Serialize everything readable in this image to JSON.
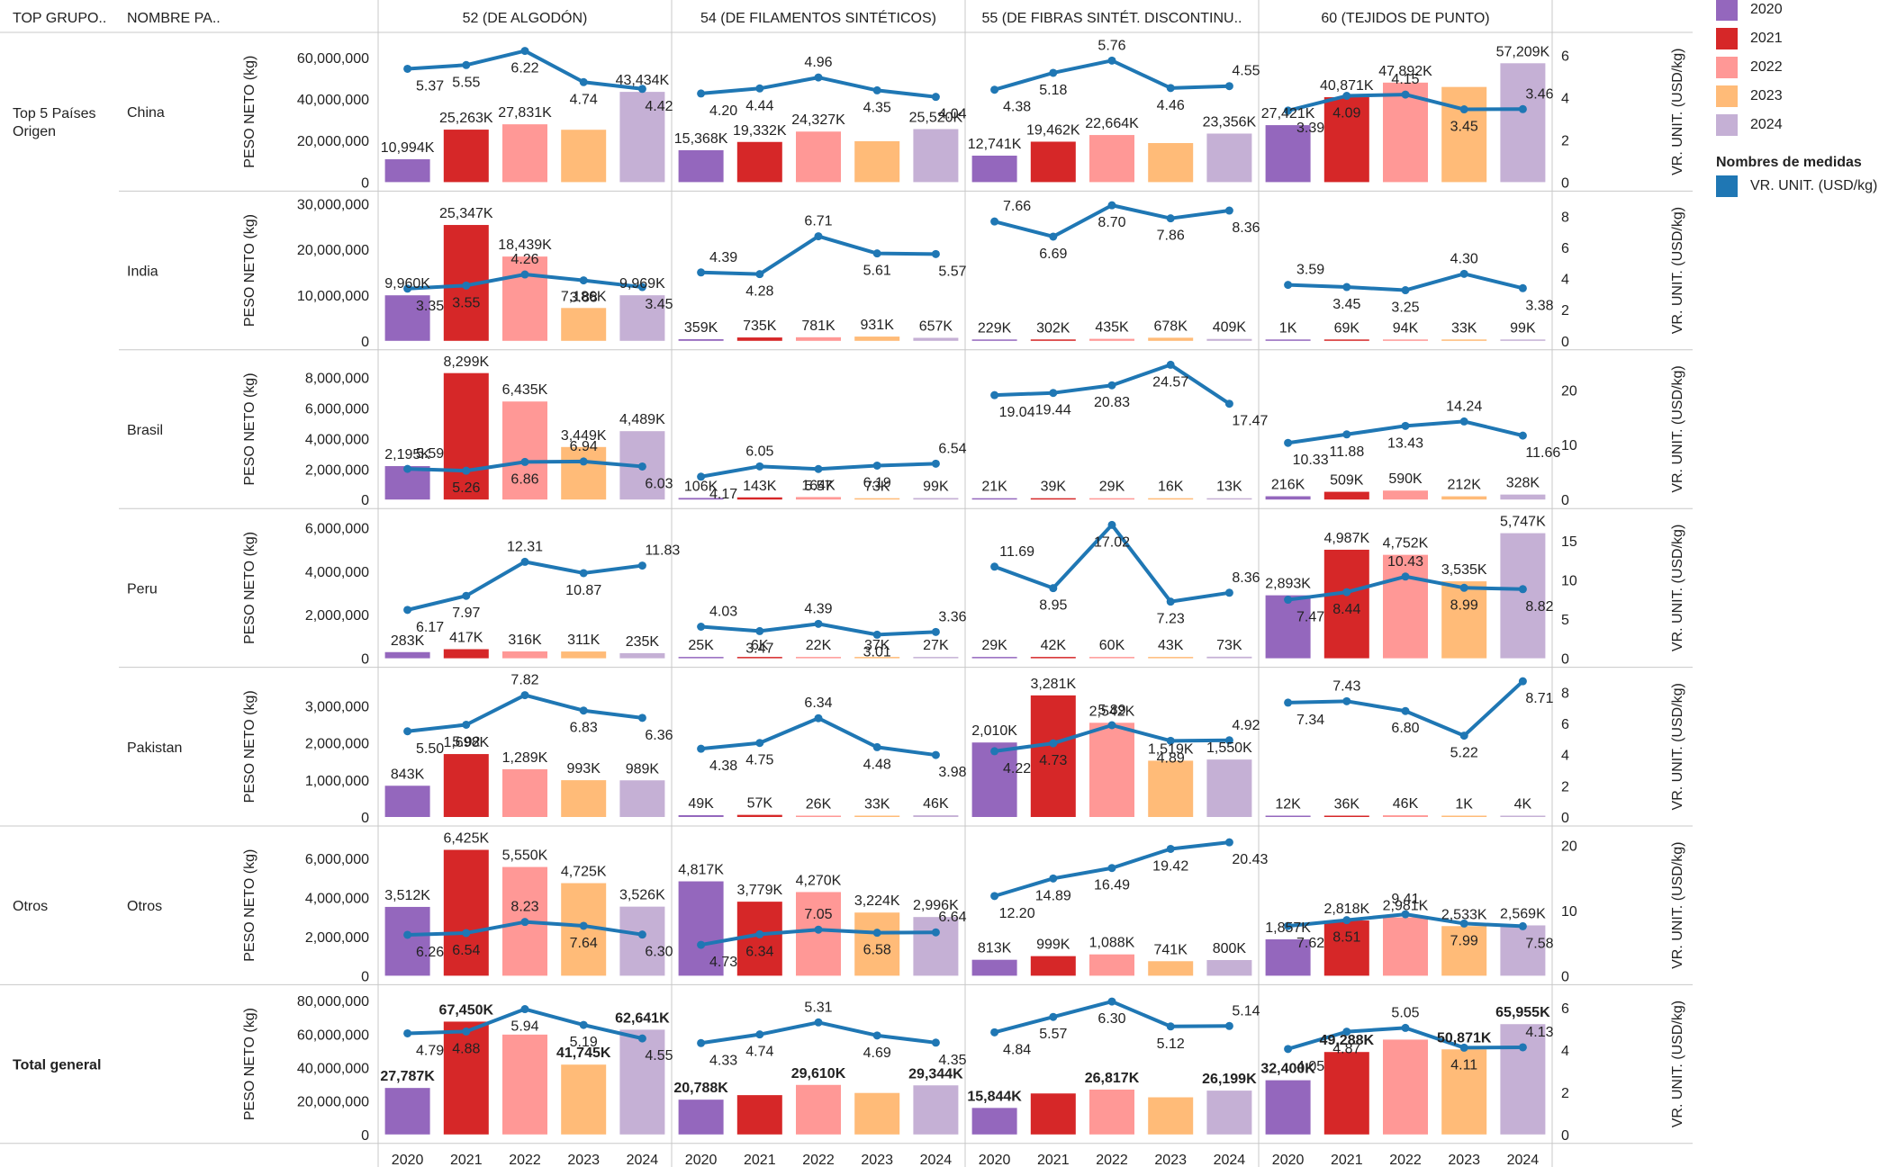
{
  "headers": {
    "row_group": "TOP GRUPO..",
    "row_name": "NOMBRE PA..",
    "columns": [
      "52 (DE ALGODÓN)",
      "54 (DE FILAMENTOS SINTÉTICOS)",
      "55 (DE FIBRAS SINTÉT.  DISCONTINU..",
      "60 (TEJIDOS DE PUNTO)"
    ]
  },
  "legend": {
    "years": [
      {
        "label": "2020",
        "color": "#9467bd"
      },
      {
        "label": "2021",
        "color": "#d62728"
      },
      {
        "label": "2022",
        "color": "#ff9896"
      },
      {
        "label": "2023",
        "color": "#ffbb78"
      },
      {
        "label": "2024",
        "color": "#c5b0d5"
      }
    ],
    "measures_title": "Nombres de medidas",
    "measure": {
      "label": "VR. UNIT. (USD/kg)",
      "color": "#1f77b4"
    }
  },
  "chart_data": {
    "type": "bar",
    "categories": [
      "2020",
      "2021",
      "2022",
      "2023",
      "2024"
    ],
    "left_axis_title": "PESO NETO (kg)",
    "right_axis_title": "VR. UNIT. (USD/kg)",
    "rows": [
      {
        "group": "Top 5 Países Origen",
        "name": "China",
        "left_ticks": [
          {
            "v": 0,
            "t": "0"
          },
          {
            "v": 20000000,
            "t": "20,000,000"
          },
          {
            "v": 40000000,
            "t": "40,000,000"
          },
          {
            "v": 60000000,
            "t": "60,000,000"
          }
        ],
        "left_max": 66000000,
        "right_ticks": [
          0,
          2,
          4,
          6
        ],
        "right_max": 6.5,
        "cells": [
          {
            "bars": [
              10994,
              25263,
              27831,
              25200,
              43434
            ],
            "labels": [
              "10,994K",
              "25,263K",
              "27,831K",
              "",
              "43,434K"
            ],
            "line": [
              5.37,
              5.55,
              6.22,
              4.74,
              4.42
            ]
          },
          {
            "bars": [
              15368,
              19332,
              24327,
              19700,
              25520
            ],
            "labels": [
              "15,368K",
              "19,332K",
              "24,327K",
              "",
              "25,520K"
            ],
            "line": [
              4.2,
              4.44,
              4.96,
              4.35,
              4.04
            ]
          },
          {
            "bars": [
              12741,
              19462,
              22664,
              18800,
              23356
            ],
            "labels": [
              "12,741K",
              "19,462K",
              "22,664K",
              "",
              "23,356K"
            ],
            "line": [
              4.38,
              5.18,
              5.76,
              4.46,
              4.55
            ]
          },
          {
            "bars": [
              27421,
              40871,
              47892,
              45800,
              57209
            ],
            "labels": [
              "27,421K",
              "40,871K",
              "47,892K",
              "",
              "57,209K"
            ],
            "line": [
              3.39,
              4.09,
              4.15,
              3.45,
              3.46
            ]
          }
        ]
      },
      {
        "group": "",
        "name": "India",
        "left_ticks": [
          {
            "v": 0,
            "t": "0"
          },
          {
            "v": 10000000,
            "t": "10,000,000"
          },
          {
            "v": 20000000,
            "t": "20,000,000"
          },
          {
            "v": 30000000,
            "t": "30,000,000"
          }
        ],
        "left_max": 30000000,
        "right_ticks": [
          0,
          2,
          4,
          6,
          8
        ],
        "right_max": 8.8,
        "cells": [
          {
            "bars": [
              9960,
              25347,
              18439,
              7186,
              9969
            ],
            "labels": [
              "9,960K",
              "25,347K",
              "18,439K",
              "7,186K",
              "9,969K"
            ],
            "line": [
              3.35,
              3.55,
              4.26,
              3.88,
              3.45
            ]
          },
          {
            "bars": [
              359,
              735,
              781,
              931,
              657
            ],
            "labels": [
              "359K",
              "735K",
              "781K",
              "931K",
              "657K"
            ],
            "line": [
              4.39,
              4.28,
              6.71,
              5.61,
              5.57
            ]
          },
          {
            "bars": [
              229,
              302,
              435,
              678,
              409
            ],
            "labels": [
              "229K",
              "302K",
              "435K",
              "678K",
              "409K"
            ],
            "line": [
              7.66,
              6.69,
              8.7,
              7.86,
              8.36
            ]
          },
          {
            "bars": [
              1,
              69,
              94,
              33,
              99
            ],
            "labels": [
              "1K",
              "69K",
              "94K",
              "33K",
              "99K"
            ],
            "line": [
              3.59,
              3.45,
              3.25,
              4.3,
              3.38
            ]
          }
        ]
      },
      {
        "group": "",
        "name": "Brasil",
        "left_ticks": [
          {
            "v": 0,
            "t": "0"
          },
          {
            "v": 2000000,
            "t": "2,000,000"
          },
          {
            "v": 4000000,
            "t": "4,000,000"
          },
          {
            "v": 6000000,
            "t": "6,000,000"
          },
          {
            "v": 8000000,
            "t": "8,000,000"
          }
        ],
        "left_max": 9000000,
        "right_ticks": [
          0,
          10,
          20
        ],
        "right_max": 25,
        "cells": [
          {
            "bars": [
              2195,
              8299,
              6435,
              3449,
              4489
            ],
            "labels": [
              "2,195K",
              "8,299K",
              "6,435K",
              "3,449K",
              "4,489K"
            ],
            "line": [
              5.59,
              5.26,
              6.86,
              6.94,
              6.03
            ]
          },
          {
            "bars": [
              106,
              143,
              164,
              73,
              99
            ],
            "labels": [
              "106K",
              "143K",
              "164K",
              "73K",
              "99K"
            ],
            "line": [
              4.17,
              6.05,
              5.57,
              6.19,
              6.54
            ]
          },
          {
            "bars": [
              21,
              39,
              29,
              16,
              13
            ],
            "labels": [
              "21K",
              "39K",
              "29K",
              "16K",
              "13K"
            ],
            "line": [
              19.04,
              19.44,
              20.83,
              24.57,
              17.47
            ]
          },
          {
            "bars": [
              216,
              509,
              590,
              212,
              328
            ],
            "labels": [
              "216K",
              "509K",
              "590K",
              "212K",
              "328K"
            ],
            "line": [
              10.33,
              11.88,
              13.43,
              14.24,
              11.66
            ]
          }
        ]
      },
      {
        "group": "",
        "name": "Peru",
        "left_ticks": [
          {
            "v": 0,
            "t": "0"
          },
          {
            "v": 2000000,
            "t": "2,000,000"
          },
          {
            "v": 4000000,
            "t": "4,000,000"
          },
          {
            "v": 6000000,
            "t": "6,000,000"
          }
        ],
        "left_max": 6300000,
        "right_ticks": [
          0,
          5,
          10,
          15
        ],
        "right_max": 17.5,
        "cells": [
          {
            "bars": [
              283,
              417,
              316,
              311,
              235
            ],
            "labels": [
              "283K",
              "417K",
              "316K",
              "311K",
              "235K"
            ],
            "line": [
              6.17,
              7.97,
              12.31,
              10.87,
              11.83
            ]
          },
          {
            "bars": [
              25,
              6,
              22,
              37,
              27
            ],
            "labels": [
              "25K",
              "6K",
              "22K",
              "37K",
              "27K"
            ],
            "line": [
              4.03,
              3.47,
              4.39,
              3.01,
              3.36
            ]
          },
          {
            "bars": [
              29,
              42,
              60,
              43,
              73
            ],
            "labels": [
              "29K",
              "42K",
              "60K",
              "43K",
              "73K"
            ],
            "line": [
              11.69,
              8.95,
              17.02,
              7.23,
              8.36
            ]
          },
          {
            "bars": [
              2893,
              4987,
              4752,
              3535,
              5747
            ],
            "labels": [
              "2,893K",
              "4,987K",
              "4,752K",
              "3,535K",
              "5,747K"
            ],
            "line": [
              7.47,
              8.44,
              10.43,
              8.99,
              8.82
            ]
          }
        ]
      },
      {
        "group": "",
        "name": "Pakistan",
        "left_ticks": [
          {
            "v": 0,
            "t": "0"
          },
          {
            "v": 1000000,
            "t": "1,000,000"
          },
          {
            "v": 2000000,
            "t": "2,000,000"
          },
          {
            "v": 3000000,
            "t": "3,000,000"
          }
        ],
        "left_max": 3700000,
        "right_ticks": [
          0,
          2,
          4,
          6,
          8
        ],
        "right_max": 8.8,
        "cells": [
          {
            "bars": [
              843,
              1698,
              1289,
              993,
              989
            ],
            "labels": [
              "843K",
              "1,698K",
              "1,289K",
              "993K",
              "989K"
            ],
            "line": [
              5.5,
              5.92,
              7.82,
              6.83,
              6.36
            ]
          },
          {
            "bars": [
              49,
              57,
              26,
              33,
              46
            ],
            "labels": [
              "49K",
              "57K",
              "26K",
              "33K",
              "46K"
            ],
            "line": [
              4.38,
              4.75,
              6.34,
              4.48,
              3.98
            ]
          },
          {
            "bars": [
              2010,
              3281,
              2542,
              1519,
              1550
            ],
            "labels": [
              "2,010K",
              "3,281K",
              "2,542K",
              "1,519K",
              "1,550K"
            ],
            "line": [
              4.22,
              4.73,
              5.89,
              4.89,
              4.92
            ]
          },
          {
            "bars": [
              12,
              36,
              46,
              1,
              4
            ],
            "labels": [
              "12K",
              "36K",
              "46K",
              "1K",
              "4K"
            ],
            "line": [
              7.34,
              7.43,
              6.8,
              5.22,
              8.71
            ]
          }
        ]
      },
      {
        "group": "Otros",
        "name": "Otros",
        "left_ticks": [
          {
            "v": 0,
            "t": "0"
          },
          {
            "v": 2000000,
            "t": "2,000,000"
          },
          {
            "v": 4000000,
            "t": "4,000,000"
          },
          {
            "v": 6000000,
            "t": "6,000,000"
          }
        ],
        "left_max": 7000000,
        "right_ticks": [
          0,
          10,
          20
        ],
        "right_max": 21,
        "cells": [
          {
            "bars": [
              3512,
              6425,
              5550,
              4725,
              3526
            ],
            "labels": [
              "3,512K",
              "6,425K",
              "5,550K",
              "4,725K",
              "3,526K"
            ],
            "line": [
              6.26,
              6.54,
              8.23,
              7.64,
              6.3
            ]
          },
          {
            "bars": [
              4817,
              3779,
              4270,
              3224,
              2996
            ],
            "labels": [
              "4,817K",
              "3,779K",
              "4,270K",
              "3,224K",
              "2,996K"
            ],
            "line": [
              4.73,
              6.34,
              7.05,
              6.58,
              6.64
            ]
          },
          {
            "bars": [
              813,
              999,
              1088,
              741,
              800
            ],
            "labels": [
              "813K",
              "999K",
              "1,088K",
              "741K",
              "800K"
            ],
            "line": [
              12.2,
              14.89,
              16.49,
              19.42,
              20.43
            ]
          },
          {
            "bars": [
              1857,
              2818,
              2981,
              2533,
              2569
            ],
            "labels": [
              "1,857K",
              "2,818K",
              "2,981K",
              "2,533K",
              "2,569K"
            ],
            "line": [
              7.62,
              8.51,
              9.41,
              7.99,
              7.58
            ]
          }
        ]
      },
      {
        "group": "Total general",
        "name": "",
        "total": true,
        "left_ticks": [
          {
            "v": 0,
            "t": "0"
          },
          {
            "v": 20000000,
            "t": "20,000,000"
          },
          {
            "v": 40000000,
            "t": "40,000,000"
          },
          {
            "v": 60000000,
            "t": "60,000,000"
          },
          {
            "v": 80000000,
            "t": "80,000,000"
          }
        ],
        "left_max": 82000000,
        "right_ticks": [
          0,
          2,
          4,
          6
        ],
        "right_max": 6.5,
        "cells": [
          {
            "bars": [
              27787,
              67450,
              59700,
              41745,
              62641
            ],
            "labels": [
              "27,787K",
              "67,450K",
              "",
              "41,745K",
              "62,641K"
            ],
            "line": [
              4.79,
              4.88,
              5.94,
              5.19,
              4.55
            ]
          },
          {
            "bars": [
              20788,
              23500,
              29610,
              24800,
              29344
            ],
            "labels": [
              "20,788K",
              "",
              "29,610K",
              "",
              "29,344K"
            ],
            "line": [
              4.33,
              4.74,
              5.31,
              4.69,
              4.35
            ]
          },
          {
            "bars": [
              15844,
              24500,
              26817,
              22200,
              26199
            ],
            "labels": [
              "15,844K",
              "",
              "26,817K",
              "",
              "26,199K"
            ],
            "line": [
              4.84,
              5.57,
              6.3,
              5.12,
              5.14
            ]
          },
          {
            "bars": [
              32400,
              49288,
              56700,
              50871,
              65955
            ],
            "labels": [
              "32,400K",
              "49,288K",
              "",
              "50,871K",
              "65,955K"
            ],
            "line": [
              4.05,
              4.87,
              5.05,
              4.11,
              4.13
            ]
          }
        ]
      }
    ]
  }
}
